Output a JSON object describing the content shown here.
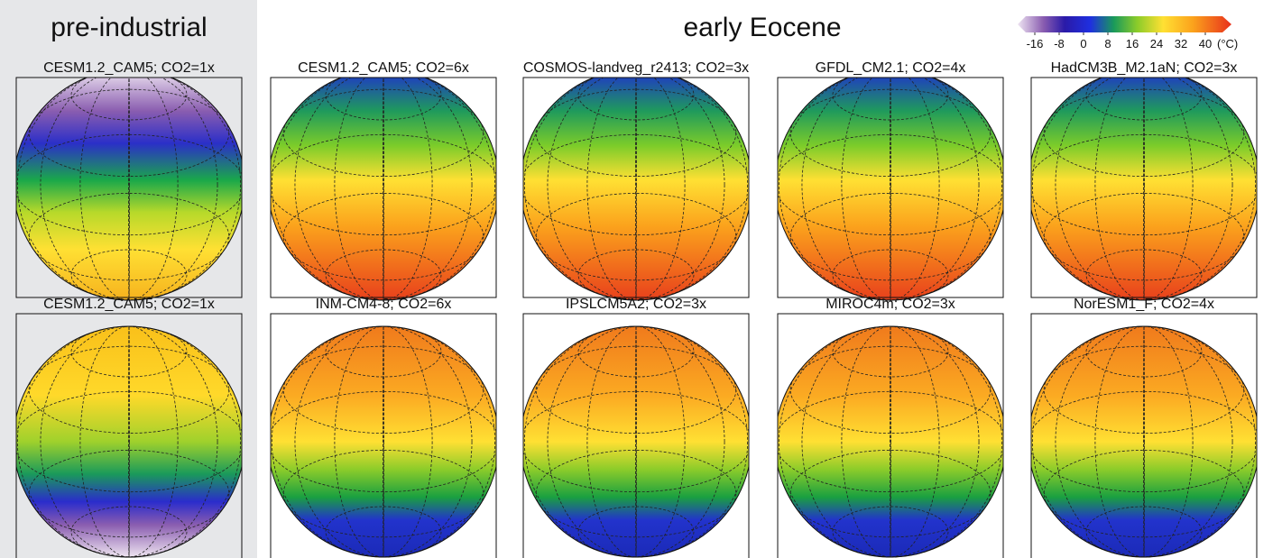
{
  "header": {
    "left_title": "pre-industrial",
    "right_title": "early Eocene"
  },
  "colorbar": {
    "ticks": [
      -16,
      -8,
      0,
      8,
      16,
      24,
      32,
      40
    ],
    "unit": "(°C)"
  },
  "panels": [
    {
      "title": "CESM1.2_CAM5; CO2=1x"
    },
    {
      "title": "CESM1.2_CAM5; CO2=6x"
    },
    {
      "title": "COSMOS-landveg_r2413; CO2=3x"
    },
    {
      "title": "GFDL_CM2.1; CO2=4x"
    },
    {
      "title": "HadCM3B_M2.1aN; CO2=3x"
    },
    {
      "title": "CESM1.2_CAM5; CO2=1x"
    },
    {
      "title": "INM-CM4-8; CO2=6x"
    },
    {
      "title": "IPSLCM5A2; CO2=3x"
    },
    {
      "title": "MIROC4m; CO2=3x"
    },
    {
      "title": "NorESM1_F; CO2=4x"
    }
  ]
}
